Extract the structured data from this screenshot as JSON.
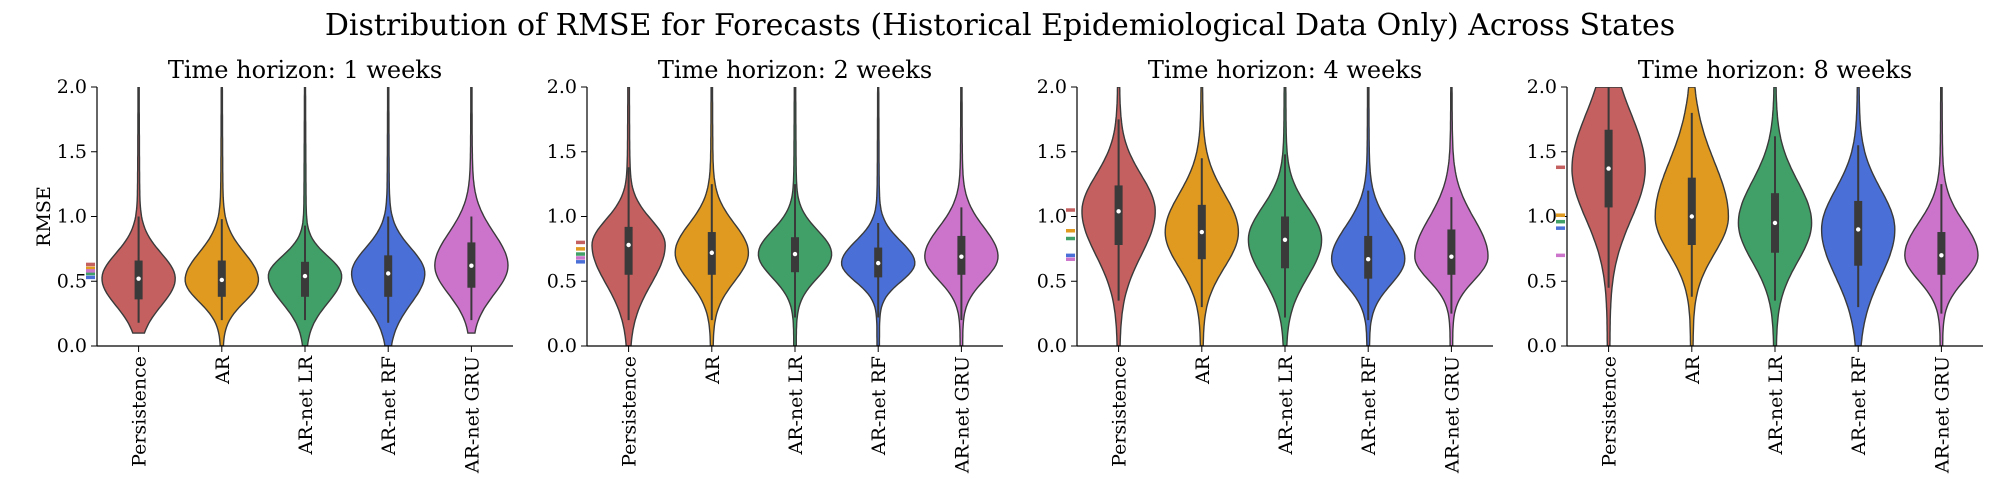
{
  "title": "Distribution of RMSE for Forecasts (Historical Epidemiological Data Only) Across States",
  "ylabel": "RMSE",
  "models": [
    "Persistence",
    "AR",
    "AR-net LR",
    "AR-net RF",
    "AR-net GRU"
  ],
  "colors": {
    "Persistence": "#c46060",
    "AR": "#e09a20",
    "AR-net LR": "#40a068",
    "AR-net RF": "#4a6fd6",
    "AR-net GRU": "#cc74cc"
  },
  "yticks": [
    "0.0",
    "0.5",
    "1.0",
    "1.5",
    "2.0"
  ],
  "chart_data": [
    {
      "type": "violin",
      "title": "Time horizon: 1 weeks",
      "ylabel": "RMSE",
      "ylim": [
        0,
        2.0
      ],
      "categories": [
        "Persistence",
        "AR",
        "AR-net LR",
        "AR-net RF",
        "AR-net GRU"
      ],
      "series": [
        {
          "name": "Persistence",
          "median": 0.52,
          "q1": 0.36,
          "q3": 0.66,
          "whisker_low": 0.18,
          "whisker_high": 1.0,
          "min": 0.1,
          "max": 2.0,
          "mean": 0.63
        },
        {
          "name": "AR",
          "median": 0.51,
          "q1": 0.38,
          "q3": 0.66,
          "whisker_low": 0.2,
          "whisker_high": 0.98,
          "min": 0.0,
          "max": 2.0,
          "mean": 0.6
        },
        {
          "name": "AR-net LR",
          "median": 0.54,
          "q1": 0.38,
          "q3": 0.65,
          "whisker_low": 0.2,
          "whisker_high": 0.93,
          "min": 0.0,
          "max": 2.0,
          "mean": 0.56
        },
        {
          "name": "AR-net RF",
          "median": 0.56,
          "q1": 0.38,
          "q3": 0.7,
          "whisker_low": 0.18,
          "whisker_high": 1.0,
          "min": 0.0,
          "max": 2.0,
          "mean": 0.53
        },
        {
          "name": "AR-net GRU",
          "median": 0.62,
          "q1": 0.45,
          "q3": 0.8,
          "whisker_low": 0.2,
          "whisker_high": 1.0,
          "min": 0.1,
          "max": 2.0,
          "mean": 0.58
        }
      ]
    },
    {
      "type": "violin",
      "title": "Time horizon: 2 weeks",
      "ylim": [
        0,
        2.0
      ],
      "categories": [
        "Persistence",
        "AR",
        "AR-net LR",
        "AR-net RF",
        "AR-net GRU"
      ],
      "series": [
        {
          "name": "Persistence",
          "median": 0.78,
          "q1": 0.55,
          "q3": 0.92,
          "whisker_low": 0.2,
          "whisker_high": 1.38,
          "min": 0.0,
          "max": 2.0,
          "mean": 0.8
        },
        {
          "name": "AR",
          "median": 0.72,
          "q1": 0.55,
          "q3": 0.88,
          "whisker_low": 0.2,
          "whisker_high": 1.25,
          "min": 0.0,
          "max": 2.0,
          "mean": 0.75
        },
        {
          "name": "AR-net LR",
          "median": 0.71,
          "q1": 0.57,
          "q3": 0.84,
          "whisker_low": 0.22,
          "whisker_high": 1.25,
          "min": 0.0,
          "max": 2.0,
          "mean": 0.71
        },
        {
          "name": "AR-net RF",
          "median": 0.64,
          "q1": 0.53,
          "q3": 0.76,
          "whisker_low": 0.22,
          "whisker_high": 0.95,
          "min": 0.0,
          "max": 2.0,
          "mean": 0.65
        },
        {
          "name": "AR-net GRU",
          "median": 0.69,
          "q1": 0.55,
          "q3": 0.85,
          "whisker_low": 0.2,
          "whisker_high": 1.07,
          "min": 0.0,
          "max": 2.0,
          "mean": 0.68
        }
      ]
    },
    {
      "type": "violin",
      "title": "Time horizon: 4 weeks",
      "ylim": [
        0,
        2.0
      ],
      "categories": [
        "Persistence",
        "AR",
        "AR-net LR",
        "AR-net RF",
        "AR-net GRU"
      ],
      "series": [
        {
          "name": "Persistence",
          "median": 1.04,
          "q1": 0.78,
          "q3": 1.24,
          "whisker_low": 0.35,
          "whisker_high": 1.75,
          "min": 0.0,
          "max": 2.0,
          "mean": 1.05
        },
        {
          "name": "AR",
          "median": 0.88,
          "q1": 0.67,
          "q3": 1.09,
          "whisker_low": 0.3,
          "whisker_high": 1.45,
          "min": 0.0,
          "max": 2.0,
          "mean": 0.89
        },
        {
          "name": "AR-net LR",
          "median": 0.82,
          "q1": 0.6,
          "q3": 1.0,
          "whisker_low": 0.22,
          "whisker_high": 1.48,
          "min": 0.0,
          "max": 2.0,
          "mean": 0.83
        },
        {
          "name": "AR-net RF",
          "median": 0.67,
          "q1": 0.52,
          "q3": 0.85,
          "whisker_low": 0.2,
          "whisker_high": 1.2,
          "min": 0.0,
          "max": 2.0,
          "mean": 0.7
        },
        {
          "name": "AR-net GRU",
          "median": 0.69,
          "q1": 0.55,
          "q3": 0.9,
          "whisker_low": 0.25,
          "whisker_high": 1.15,
          "min": 0.0,
          "max": 2.0,
          "mean": 0.67
        }
      ]
    },
    {
      "type": "violin",
      "title": "Time horizon: 8 weeks",
      "ylim": [
        0,
        2.0
      ],
      "categories": [
        "Persistence",
        "AR",
        "AR-net LR",
        "AR-net RF",
        "AR-net GRU"
      ],
      "series": [
        {
          "name": "Persistence",
          "median": 1.37,
          "q1": 1.07,
          "q3": 1.67,
          "whisker_low": 0.45,
          "whisker_high": 2.0,
          "min": 0.0,
          "max": 2.0,
          "mean": 1.38
        },
        {
          "name": "AR",
          "median": 1.0,
          "q1": 0.78,
          "q3": 1.3,
          "whisker_low": 0.38,
          "whisker_high": 1.8,
          "min": 0.0,
          "max": 2.0,
          "mean": 1.01
        },
        {
          "name": "AR-net LR",
          "median": 0.95,
          "q1": 0.72,
          "q3": 1.18,
          "whisker_low": 0.35,
          "whisker_high": 1.62,
          "min": 0.0,
          "max": 2.0,
          "mean": 0.96
        },
        {
          "name": "AR-net RF",
          "median": 0.9,
          "q1": 0.62,
          "q3": 1.12,
          "whisker_low": 0.3,
          "whisker_high": 1.55,
          "min": 0.0,
          "max": 2.0,
          "mean": 0.91
        },
        {
          "name": "AR-net GRU",
          "median": 0.7,
          "q1": 0.55,
          "q3": 0.88,
          "whisker_low": 0.25,
          "whisker_high": 1.25,
          "min": 0.0,
          "max": 2.0,
          "mean": 0.7
        }
      ]
    }
  ]
}
